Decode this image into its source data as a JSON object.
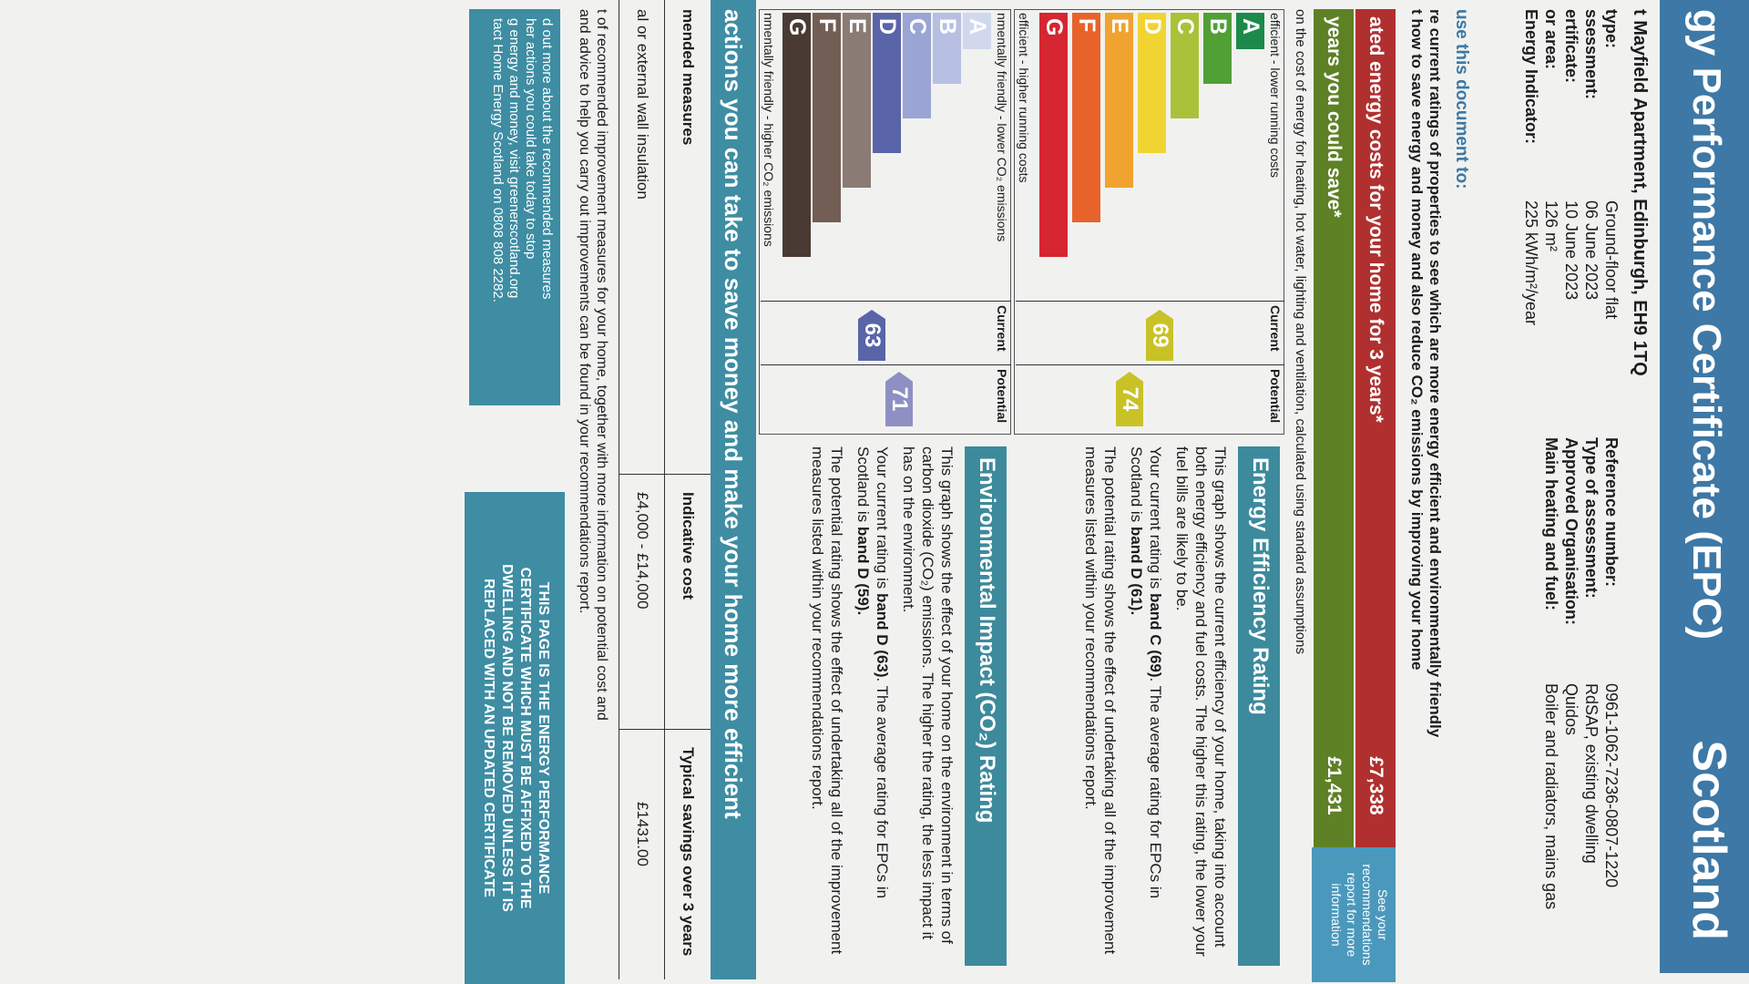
{
  "header": {
    "title": "gy Performance Certificate (EPC)",
    "region": "Scotland"
  },
  "property": {
    "address": "t Mayfield Apartment, Edinburgh, EH9 1TQ"
  },
  "details_left": [
    {
      "key": "type:",
      "value": "Ground-floor flat"
    },
    {
      "key": "ssessment:",
      "value": "06 June 2023"
    },
    {
      "key": "ertificate:",
      "value": "10 June 2023"
    },
    {
      "key": "or area:",
      "value": "126 m²"
    },
    {
      "key": "Energy Indicator:",
      "value": "225 kWh/m²/year"
    }
  ],
  "details_right": [
    {
      "key": "Reference number:",
      "value": "0961-1062-7236-0807-1220"
    },
    {
      "key": "Type of assessment:",
      "value": "RdSAP, existing dwelling"
    },
    {
      "key": "Approved Organisation:",
      "value": "Quidos"
    },
    {
      "key": "Main heating and fuel:",
      "value": "Boiler and radiators, mains gas"
    }
  ],
  "usage": {
    "title": "use this document to:",
    "line1": "re current ratings of properties to see which are more energy efficient and environmentally friendly",
    "line2": "t how to save energy and money and also reduce CO₂ emissions by improving your home"
  },
  "costs": {
    "row1_label": "ated energy costs for your home for 3 years*",
    "row1_value": "£7,338",
    "row2_label": "years you could save*",
    "row2_value": "£1,431",
    "hint": "See your recommendations report for more information",
    "note": "on the cost of energy for heating, hot water, lighting and ventilation, calculated using standard assumptions"
  },
  "energy_chart": {
    "top_caption": "efficient - lower running costs",
    "bottom_caption": "efficient - higher running costs",
    "col_current": "Current",
    "col_potential": "Potential",
    "bands": [
      "A",
      "B",
      "C",
      "D",
      "E",
      "F",
      "G"
    ],
    "current": "69",
    "potential": "74",
    "current_color": "#c8c227",
    "potential_color": "#c8c227"
  },
  "env_chart": {
    "top_caption": "nmentally friendly - lower CO₂ emissions",
    "bottom_caption": "nmentally friendly - higher CO₂ emissions",
    "col_current": "Current",
    "col_potential": "Potential",
    "bands": [
      "A",
      "B",
      "C",
      "D",
      "E",
      "F",
      "G"
    ],
    "current": "63",
    "potential": "71",
    "current_color": "#5a64a8",
    "potential_color": "#8e90c4"
  },
  "energy_rating": {
    "title": "Energy Efficiency Rating",
    "p1": "This graph shows the current efficiency of your home, taking into account both energy efficiency and fuel costs. The higher this rating, the lower your fuel bills are likely to be.",
    "p2_a": "Your current rating is ",
    "p2_b": "band C (69)",
    "p2_c": ". The average rating for EPCs in Scotland is ",
    "p2_d": "band D (61).",
    "p3": "The potential rating shows the effect of undertaking all of the improvement measures listed within your recommendations report."
  },
  "env_rating": {
    "title": "Environmental Impact (CO₂) Rating",
    "p1": "This graph shows the effect of your home on the environment in terms of carbon dioxide (CO₂) emissions. The higher the rating, the less impact it has on the environment.",
    "p2_a": "Your current rating is ",
    "p2_b": "band D (63)",
    "p2_c": ". The average rating for EPCs in Scotland is ",
    "p2_d": "band D (59).",
    "p3": "The potential rating shows the effect of undertaking all of the improvement measures listed within your recommendations report."
  },
  "actions": {
    "title": "actions you can take to save money and make your home more efficient",
    "col_measures": "mended measures",
    "col_cost": "Indicative cost",
    "col_savings": "Typical savings over 3 years",
    "row_measure": "al or external wall insulation",
    "row_cost": "£4,000 - £14,000",
    "row_savings": "£1431.00",
    "foot1": "t of recommended improvement measures for your home, together with more information on potential cost and",
    "foot2": "and advice to help you carry out improvements can be found in your recommendations report."
  },
  "info_box": {
    "l1": "d out more about the recommended measures",
    "l2": "her actions you could take today to stop",
    "l3": "g energy and money, visit greenerscotland.org",
    "l4": "tact Home Energy Scotland on 0808 808 2282."
  },
  "notice": {
    "l1": "THIS PAGE IS THE ENERGY PERFORMANCE",
    "l2": "CERTIFICATE WHICH MUST BE AFFIXED TO THE",
    "l3": "DWELLING AND NOT BE REMOVED UNLESS IT IS",
    "l4": "REPLACED WITH AN UPDATED CERTIFICATE"
  }
}
